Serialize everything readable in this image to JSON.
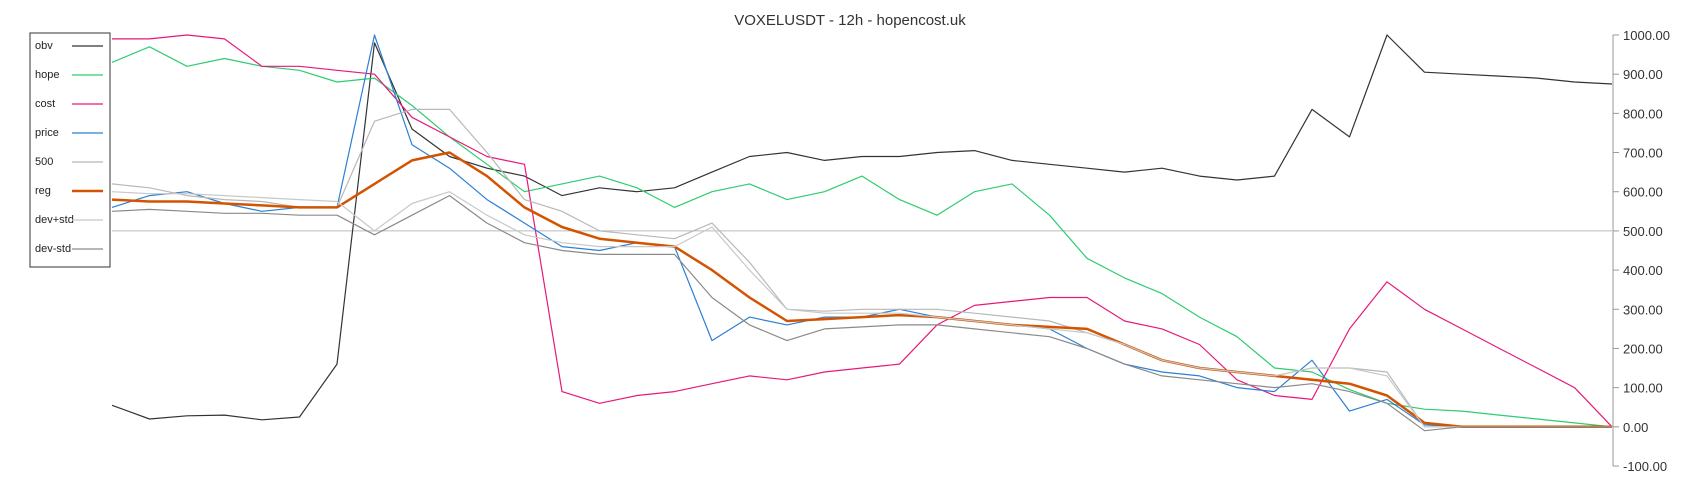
{
  "chart_data": {
    "type": "line",
    "title": "VOXELUSDT - 12h - hopencost.uk",
    "xlabel": "",
    "ylabel": "",
    "ylim": [
      -100,
      1000
    ],
    "yticks": [
      1000,
      900,
      800,
      700,
      600,
      500,
      400,
      300,
      200,
      100,
      0,
      -100
    ],
    "ytick_labels": [
      "1000.00",
      "900.00",
      "800.00",
      "700.00",
      "600.00",
      "500.00",
      "400.00",
      "300.00",
      "200.00",
      "100.00",
      "0.00",
      "-100.00"
    ],
    "y_axis_side": "right",
    "grid": false,
    "reference_lines": [
      500
    ],
    "legend": {
      "placement": "top-left"
    },
    "x": [
      0,
      10,
      20,
      30,
      40,
      50,
      60,
      70,
      80,
      90,
      100,
      110,
      120,
      130,
      140,
      150,
      160,
      170,
      180,
      190,
      200,
      210,
      220,
      230,
      240,
      250,
      260,
      270,
      280,
      290,
      300,
      310,
      320,
      330,
      340,
      350,
      360,
      370,
      380,
      390,
      400
    ],
    "series": [
      {
        "name": "obv",
        "color": "#333333",
        "width": 1.2,
        "values": [
          55,
          20,
          28,
          30,
          18,
          25,
          160,
          980,
          760,
          690,
          660,
          640,
          590,
          610,
          600,
          610,
          650,
          690,
          700,
          680,
          690,
          690,
          700,
          705,
          680,
          670,
          660,
          650,
          660,
          640,
          630,
          640,
          810,
          740,
          1000,
          905,
          900,
          895,
          890,
          880,
          875
        ]
      },
      {
        "name": "hope",
        "color": "#2ecc71",
        "width": 1.2,
        "values": [
          930,
          970,
          920,
          940,
          920,
          910,
          880,
          890,
          820,
          740,
          670,
          600,
          620,
          640,
          610,
          560,
          600,
          620,
          580,
          600,
          640,
          580,
          540,
          600,
          620,
          540,
          430,
          380,
          340,
          280,
          230,
          150,
          140,
          95,
          60,
          45,
          40,
          30,
          20,
          10,
          0
        ]
      },
      {
        "name": "cost",
        "color": "#e6197a",
        "width": 1.2,
        "values": [
          990,
          990,
          1000,
          990,
          920,
          920,
          910,
          900,
          790,
          740,
          690,
          670,
          90,
          60,
          80,
          90,
          110,
          130,
          120,
          140,
          150,
          160,
          260,
          310,
          320,
          330,
          330,
          270,
          250,
          210,
          120,
          80,
          70,
          250,
          370,
          300,
          250,
          200,
          150,
          100,
          0
        ]
      },
      {
        "name": "price",
        "color": "#2d7fd4",
        "width": 1.2,
        "values": [
          560,
          590,
          600,
          570,
          550,
          560,
          560,
          1000,
          720,
          660,
          580,
          520,
          460,
          450,
          470,
          460,
          220,
          280,
          260,
          280,
          280,
          300,
          280,
          270,
          260,
          250,
          200,
          160,
          140,
          130,
          100,
          90,
          170,
          40,
          70,
          5,
          0,
          0,
          0,
          0,
          0
        ]
      },
      {
        "name": "500",
        "color": "#b8b8b8",
        "width": 1.2,
        "values": [
          620,
          610,
          590,
          580,
          575,
          560,
          560,
          780,
          810,
          810,
          700,
          580,
          550,
          500,
          490,
          480,
          520,
          420,
          300,
          295,
          300,
          300,
          300,
          290,
          280,
          270,
          240,
          210,
          170,
          150,
          140,
          130,
          150,
          150,
          140,
          0,
          0,
          0,
          0,
          0,
          0
        ]
      },
      {
        "name": "reg",
        "color": "#d35400",
        "width": 2.5,
        "values": [
          580,
          575,
          575,
          570,
          565,
          560,
          560,
          620,
          680,
          700,
          640,
          560,
          510,
          480,
          470,
          460,
          400,
          330,
          270,
          275,
          280,
          285,
          280,
          270,
          260,
          255,
          250,
          210,
          170,
          150,
          140,
          130,
          120,
          110,
          80,
          10,
          0,
          0,
          0,
          0,
          0
        ]
      },
      {
        "name": "dev+std",
        "color": "#c8c8c8",
        "width": 1.2,
        "values": [
          600,
          595,
          595,
          590,
          585,
          580,
          575,
          500,
          570,
          600,
          540,
          490,
          470,
          460,
          460,
          460,
          510,
          400,
          300,
          290,
          290,
          290,
          280,
          270,
          260,
          250,
          240,
          210,
          170,
          150,
          140,
          130,
          150,
          150,
          130,
          0,
          0,
          0,
          0,
          0,
          0
        ]
      },
      {
        "name": "dev-std",
        "color": "#8a8a8a",
        "width": 1.2,
        "values": [
          550,
          555,
          550,
          545,
          545,
          540,
          540,
          490,
          540,
          590,
          520,
          470,
          450,
          440,
          440,
          440,
          330,
          260,
          220,
          250,
          255,
          260,
          260,
          250,
          240,
          230,
          200,
          160,
          130,
          120,
          110,
          100,
          110,
          90,
          60,
          -10,
          0,
          0,
          0,
          0,
          0
        ]
      }
    ]
  }
}
